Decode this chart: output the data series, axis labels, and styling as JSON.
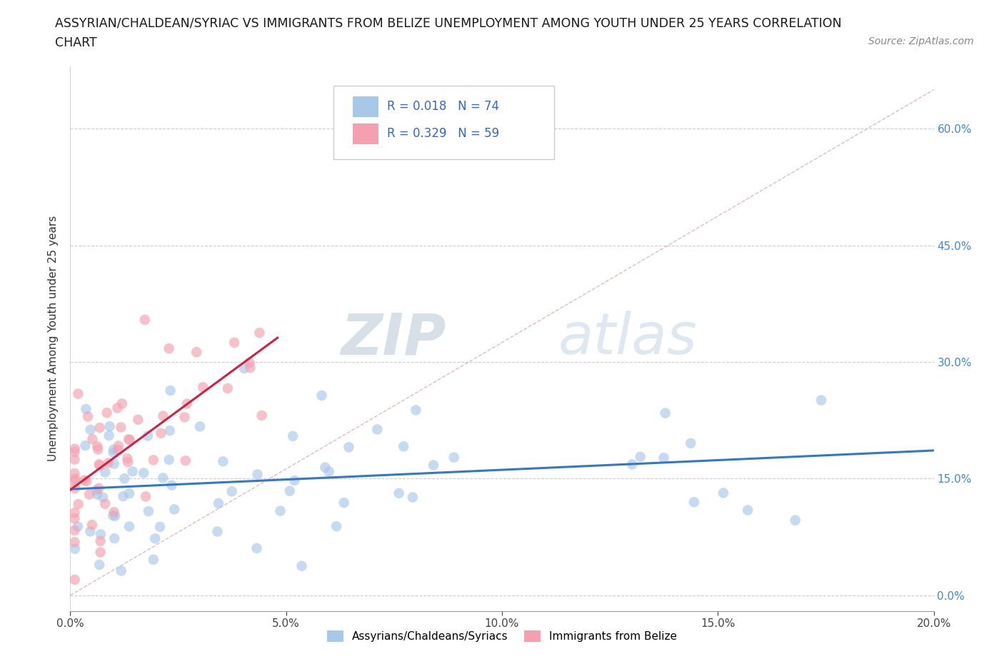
{
  "title_line1": "ASSYRIAN/CHALDEAN/SYRIAC VS IMMIGRANTS FROM BELIZE UNEMPLOYMENT AMONG YOUTH UNDER 25 YEARS CORRELATION",
  "title_line2": "CHART",
  "source": "Source: ZipAtlas.com",
  "ylabel": "Unemployment Among Youth under 25 years",
  "xlim": [
    0.0,
    0.2
  ],
  "ylim": [
    -0.02,
    0.68
  ],
  "xticks": [
    0.0,
    0.05,
    0.1,
    0.15,
    0.2
  ],
  "xticklabels": [
    "0.0%",
    "5.0%",
    "10.0%",
    "15.0%",
    "20.0%"
  ],
  "yticks": [
    0.0,
    0.15,
    0.3,
    0.45,
    0.6
  ],
  "yticklabels_right": [
    "0.0%",
    "15.0%",
    "30.0%",
    "45.0%",
    "60.0%"
  ],
  "grid_color": "#cccccc",
  "background_color": "#ffffff",
  "legend_R1": "R = 0.018",
  "legend_N1": "N = 74",
  "legend_R2": "R = 0.329",
  "legend_N2": "N = 59",
  "color_blue": "#a8c8e8",
  "color_pink": "#f4a0b0",
  "trendline_blue": "#3377cc",
  "trendline_pink": "#cc2244",
  "diagonal_color": "#d4a0a0",
  "label1": "Assyrians/Chaldeans/Syriacs",
  "label2": "Immigrants from Belize",
  "blue_trend_slope": 0.15,
  "blue_trend_intercept": 0.148,
  "pink_trend_x0": 0.0,
  "pink_trend_y0": 0.148,
  "pink_trend_x1": 0.048,
  "pink_trend_y1": 0.32,
  "watermark_ZIP": "ZIP",
  "watermark_atlas": "atlas",
  "watermark_color_ZIP": "#c0ccd8",
  "watermark_color_atlas": "#b8cce0"
}
